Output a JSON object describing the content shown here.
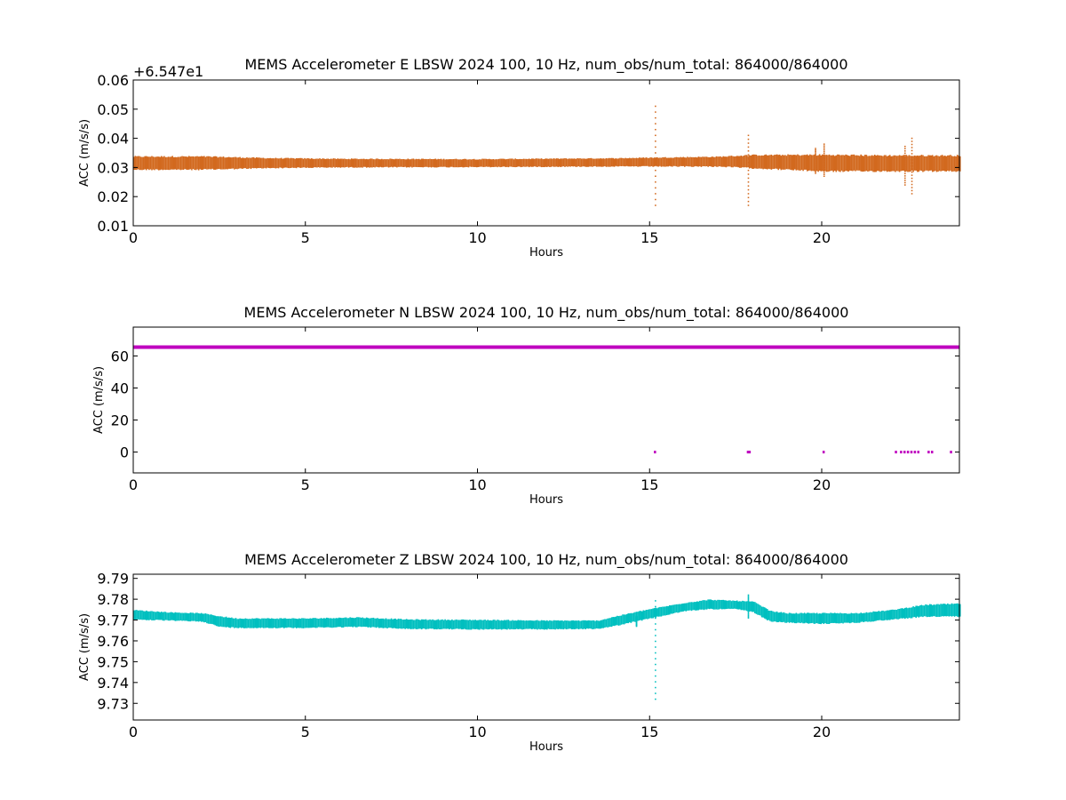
{
  "chart_data": [
    {
      "type": "scatter",
      "title": "MEMS Accelerometer E LBSW 2024 100, 10 Hz, num_obs/num_total: 864000/864000",
      "xlabel": "Hours",
      "ylabel": "ACC (m/s/s)",
      "offset_text": "+6.547e1",
      "y_offset": 65.47,
      "xlim": [
        0,
        24
      ],
      "ylim": [
        0.01,
        0.06
      ],
      "xticks": [
        0,
        5,
        10,
        15,
        20
      ],
      "yticks": [
        0.01,
        0.02,
        0.03,
        0.04,
        0.05,
        0.06
      ],
      "ytick_labels": [
        "0.01",
        "0.02",
        "0.03",
        "0.04",
        "0.05",
        "0.06"
      ],
      "color": "#d2691e",
      "series": [
        {
          "band": [
            [
              0,
              0.0295,
              0.0335
            ],
            [
              2,
              0.0295,
              0.0335
            ],
            [
              4,
              0.03,
              0.033
            ],
            [
              6,
              0.0302,
              0.0328
            ],
            [
              10,
              0.0303,
              0.0327
            ],
            [
              14,
              0.0305,
              0.033
            ],
            [
              15,
              0.0305,
              0.0332
            ],
            [
              17,
              0.0305,
              0.0335
            ],
            [
              18,
              0.03,
              0.034
            ],
            [
              19,
              0.0295,
              0.034
            ],
            [
              20,
              0.029,
              0.034
            ],
            [
              22,
              0.029,
              0.0338
            ],
            [
              24,
              0.029,
              0.0338
            ]
          ],
          "spikes": [
            [
              15.15,
              0.017,
              0.053
            ],
            [
              17.85,
              0.017,
              0.041
            ],
            [
              20.05,
              0.027,
              0.038
            ],
            [
              22.6,
              0.021,
              0.04
            ],
            [
              22.4,
              0.024,
              0.038
            ],
            [
              19.8,
              0.028,
              0.037
            ]
          ]
        }
      ]
    },
    {
      "type": "scatter",
      "title": "MEMS Accelerometer N LBSW 2024 100, 10 Hz, num_obs/num_total: 864000/864000",
      "xlabel": "Hours",
      "ylabel": "ACC (m/s/s)",
      "xlim": [
        0,
        24
      ],
      "ylim": [
        -13,
        78
      ],
      "xticks": [
        0,
        5,
        10,
        15,
        20
      ],
      "yticks": [
        0,
        20,
        40,
        60
      ],
      "ytick_labels": [
        "0",
        "20",
        "40",
        "60"
      ],
      "color": "#bf00bf",
      "series": [
        {
          "line_value": 65.5,
          "zero_points": [
            15.15,
            17.85,
            17.9,
            20.05,
            22.15,
            22.3,
            22.4,
            22.5,
            22.6,
            22.7,
            22.8,
            23.1,
            23.2,
            23.75
          ]
        }
      ]
    },
    {
      "type": "scatter",
      "title": "MEMS Accelerometer Z LBSW 2024 100, 10 Hz, num_obs/num_total: 864000/864000",
      "xlabel": "Hours",
      "ylabel": "ACC (m/s/s)",
      "xlim": [
        0,
        24
      ],
      "ylim": [
        9.722,
        9.792
      ],
      "xticks": [
        0,
        5,
        10,
        15,
        20
      ],
      "yticks": [
        9.73,
        9.74,
        9.75,
        9.76,
        9.77,
        9.78,
        9.79
      ],
      "ytick_labels": [
        "9.73",
        "9.74",
        "9.75",
        "9.76",
        "9.77",
        "9.78",
        "9.79"
      ],
      "color": "#00bfbf",
      "series": [
        {
          "band": [
            [
              0,
              9.7705,
              9.7745
            ],
            [
              1,
              9.77,
              9.7735
            ],
            [
              2,
              9.7695,
              9.773
            ],
            [
              2.5,
              9.767,
              9.7715
            ],
            [
              3,
              9.7665,
              9.7705
            ],
            [
              5,
              9.7665,
              9.7705
            ],
            [
              6.5,
              9.767,
              9.771
            ],
            [
              8,
              9.766,
              9.77
            ],
            [
              10,
              9.7658,
              9.7698
            ],
            [
              12,
              9.7658,
              9.7695
            ],
            [
              13.5,
              9.766,
              9.7695
            ],
            [
              14,
              9.7675,
              9.7715
            ],
            [
              15,
              9.771,
              9.775
            ],
            [
              16,
              9.7745,
              9.778
            ],
            [
              16.7,
              9.7755,
              9.7795
            ],
            [
              17.5,
              9.7755,
              9.779
            ],
            [
              18,
              9.774,
              9.7785
            ],
            [
              18.5,
              9.7695,
              9.774
            ],
            [
              19,
              9.769,
              9.773
            ],
            [
              20,
              9.7685,
              9.773
            ],
            [
              21,
              9.769,
              9.773
            ],
            [
              22,
              9.7705,
              9.7745
            ],
            [
              23,
              9.772,
              9.777
            ],
            [
              24,
              9.772,
              9.7775
            ]
          ],
          "spikes": [
            [
              15.15,
              9.732,
              9.782
            ],
            [
              17.85,
              9.771,
              9.782
            ],
            [
              14.6,
              9.767,
              9.772
            ]
          ]
        }
      ]
    }
  ]
}
